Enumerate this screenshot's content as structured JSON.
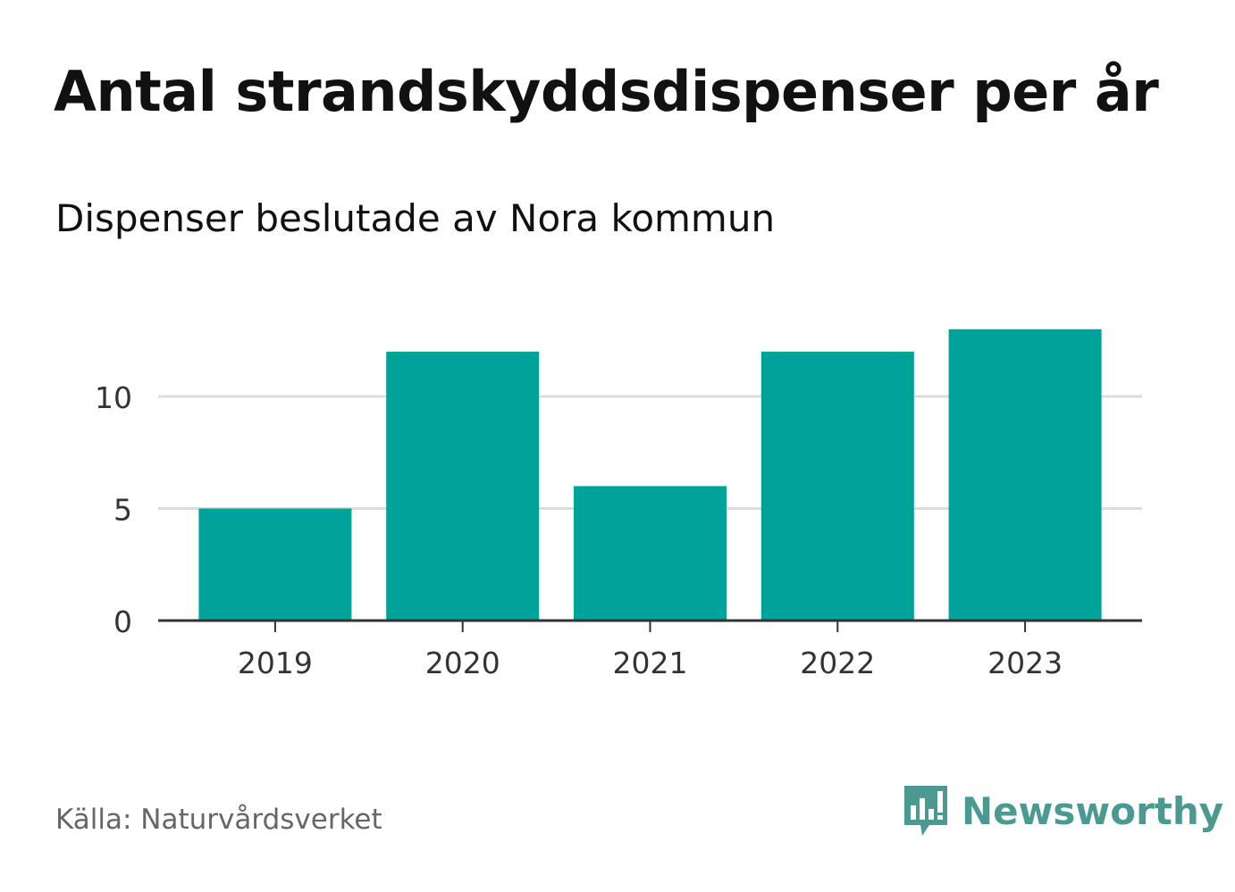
{
  "title": "Antal strandskyddsdispenser per år",
  "subtitle": "Dispenser beslutade av Nora kommun",
  "source": "Källa: Naturvårdsverket",
  "brand": {
    "name": "Newsworthy",
    "color": "#4a9a91",
    "logo_icon": "newsworthy-chart-bubble-icon"
  },
  "colors": {
    "bar": "#00a39a",
    "grid": "#dddddd",
    "axis": "#333333",
    "tick_text": "#333333"
  },
  "chart_data": {
    "type": "bar",
    "title": "Antal strandskyddsdispenser per år",
    "subtitle": "Dispenser beslutade av Nora kommun",
    "xlabel": "",
    "ylabel": "",
    "categories": [
      "2019",
      "2020",
      "2021",
      "2022",
      "2023"
    ],
    "values": [
      5,
      12,
      6,
      12,
      13
    ],
    "yticks": [
      0,
      5,
      10
    ],
    "ylim": [
      0,
      13
    ],
    "grid": true,
    "legend": "none"
  }
}
